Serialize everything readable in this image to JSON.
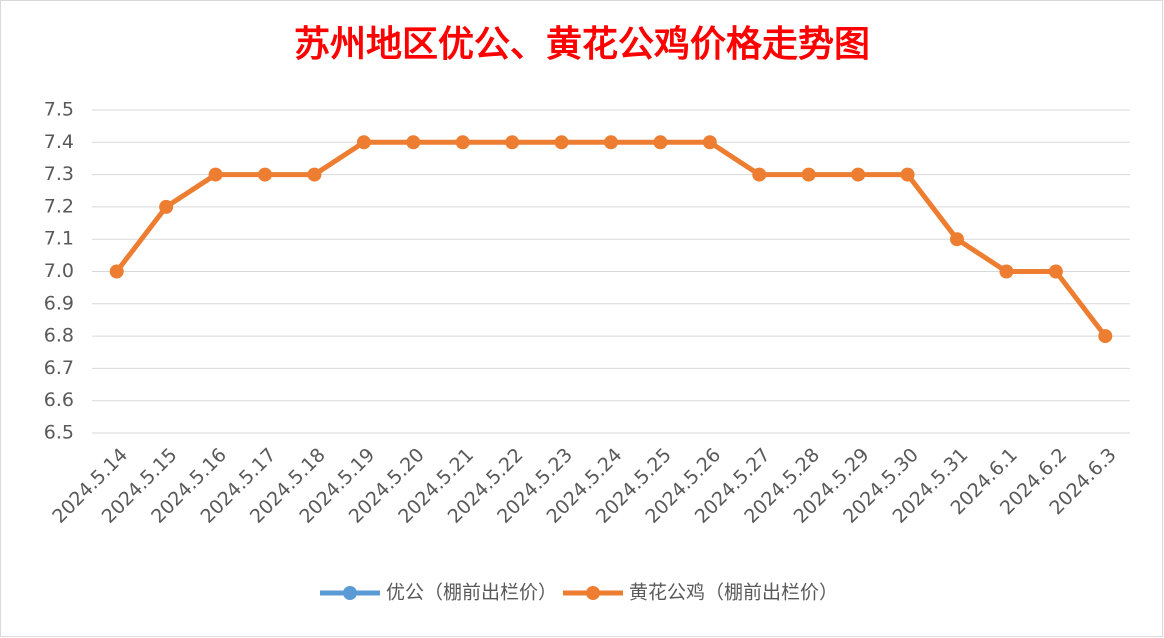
{
  "chart_data": {
    "type": "line",
    "title": "苏州地区优公、黄花公鸡价格走势图",
    "categories": [
      "2024.5.14",
      "2024.5.15",
      "2024.5.16",
      "2024.5.17",
      "2024.5.18",
      "2024.5.19",
      "2024.5.20",
      "2024.5.21",
      "2024.5.22",
      "2024.5.23",
      "2024.5.24",
      "2024.5.25",
      "2024.5.26",
      "2024.5.27",
      "2024.5.28",
      "2024.5.29",
      "2024.5.30",
      "2024.5.31",
      "2024.6.1",
      "2024.6.2",
      "2024.6.3"
    ],
    "series": [
      {
        "name": "优公（棚前出栏价）",
        "color": "#5b9bd5",
        "values": [
          null,
          null,
          null,
          null,
          null,
          null,
          null,
          null,
          null,
          null,
          null,
          null,
          null,
          null,
          null,
          null,
          null,
          null,
          null,
          null,
          null
        ]
      },
      {
        "name": "黄花公鸡（棚前出栏价）",
        "color": "#ed7d31",
        "values": [
          7.0,
          7.2,
          7.3,
          7.3,
          7.3,
          7.4,
          7.4,
          7.4,
          7.4,
          7.4,
          7.4,
          7.4,
          7.4,
          7.3,
          7.3,
          7.3,
          7.3,
          7.1,
          7.0,
          7.0,
          6.8
        ]
      }
    ],
    "ylim": [
      6.5,
      7.5
    ],
    "yticks": [
      6.5,
      6.6,
      6.7,
      6.8,
      6.9,
      {
        "value": 7,
        "label": "7.0"
      },
      7.1,
      7.2,
      7.3,
      7.4,
      7.5
    ],
    "grid": true,
    "legend": "bottom"
  }
}
